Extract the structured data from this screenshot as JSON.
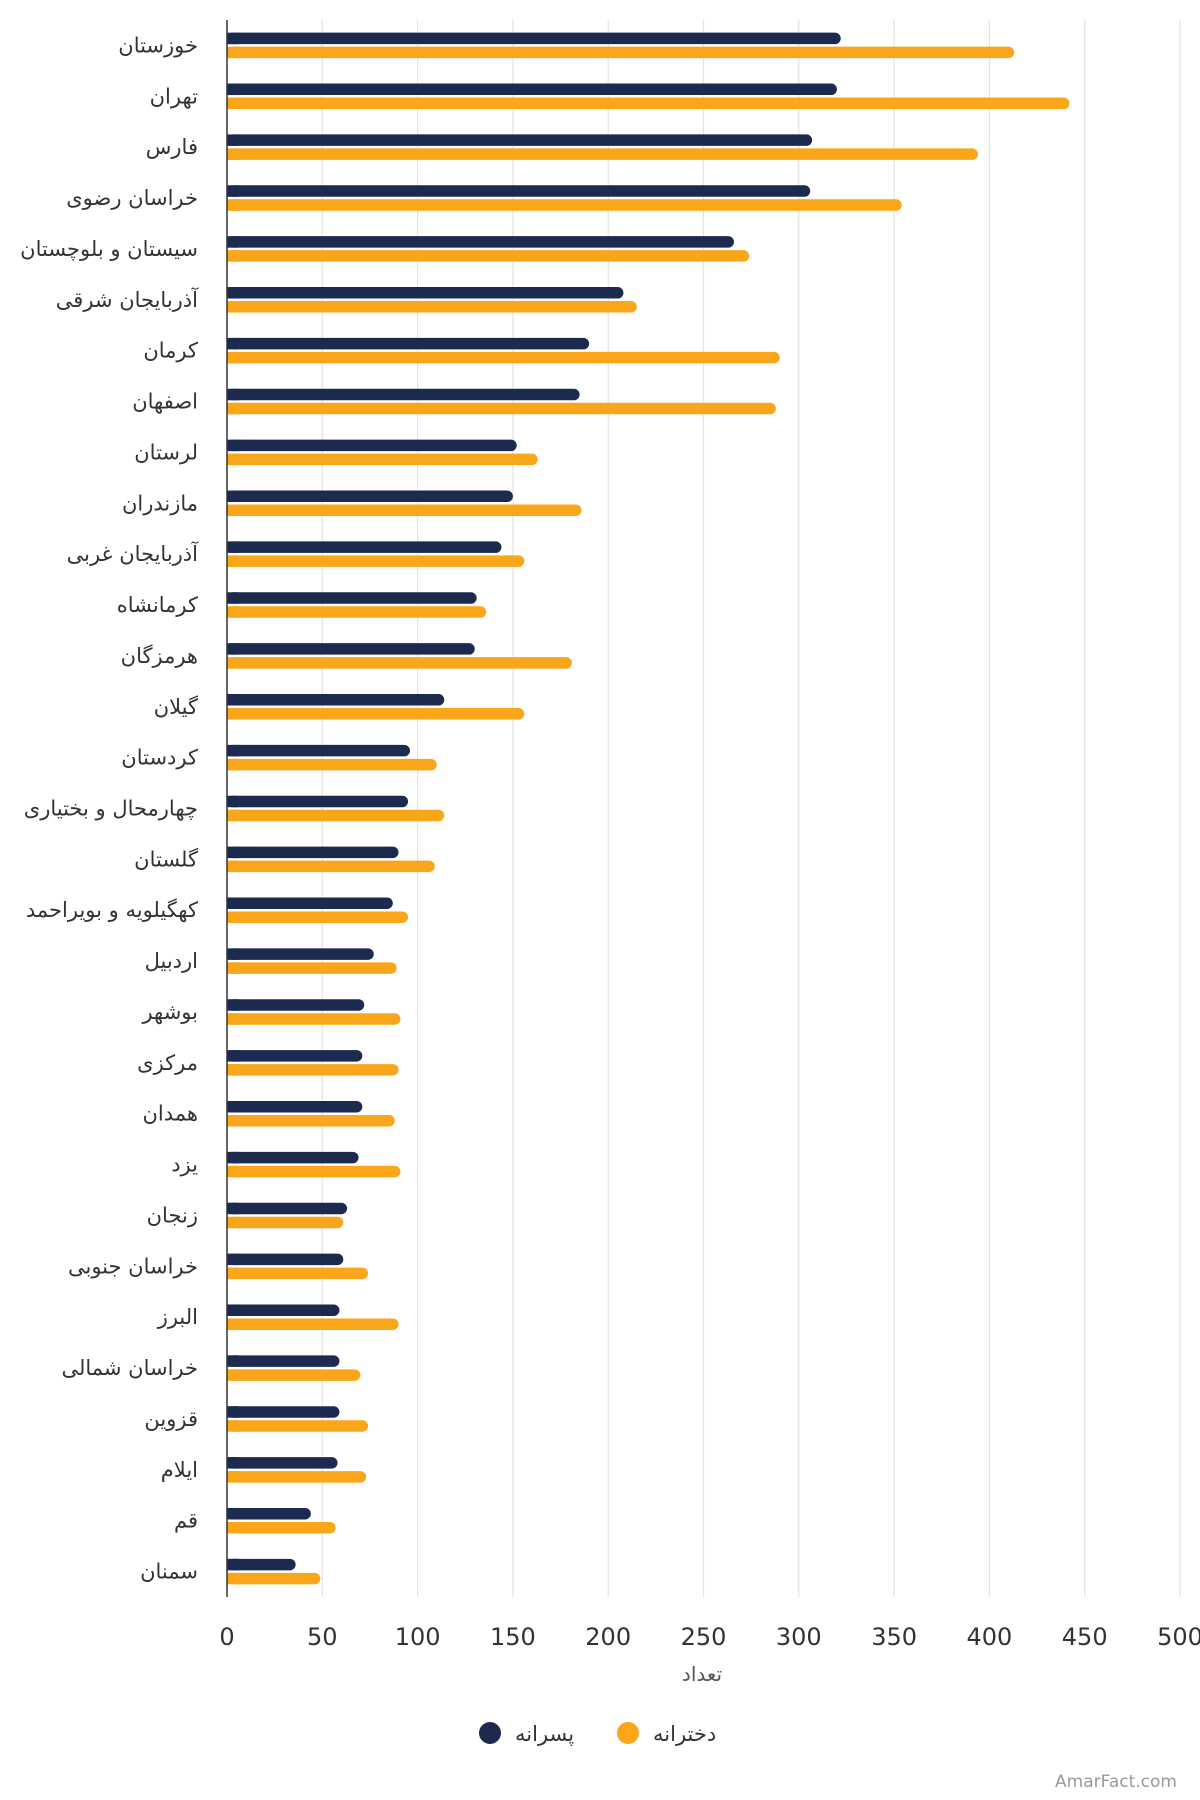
{
  "chart_data": {
    "type": "bar",
    "orientation": "horizontal",
    "categories": [
      "خوزستان",
      "تهران",
      "فارس",
      "خراسان رضوی",
      "سیستان و بلوچستان",
      "آذربایجان شرقی",
      "کرمان",
      "اصفهان",
      "لرستان",
      "مازندران",
      "آذربایجان غربی",
      "کرمانشاه",
      "هرمزگان",
      "گیلان",
      "کردستان",
      "چهارمحال و بختیاری",
      "گلستان",
      "کهگیلویه و بویراحمد",
      "اردبیل",
      "بوشهر",
      "مرکزی",
      "همدان",
      "یزد",
      "زنجان",
      "خراسان جنوبی",
      "البرز",
      "خراسان شمالی",
      "قزوین",
      "ایلام",
      "قم",
      "سمنان"
    ],
    "series": [
      {
        "name": "پسرانه",
        "color": "#1b2a4e",
        "values": [
          322,
          320,
          307,
          306,
          266,
          208,
          190,
          185,
          152,
          150,
          144,
          131,
          130,
          114,
          96,
          95,
          90,
          87,
          77,
          72,
          71,
          71,
          69,
          63,
          61,
          59,
          59,
          59,
          58,
          44,
          36
        ]
      },
      {
        "name": "دخترانه",
        "color": "#f9a61a",
        "values": [
          413,
          442,
          394,
          354,
          274,
          215,
          290,
          288,
          163,
          186,
          156,
          136,
          181,
          156,
          110,
          114,
          109,
          95,
          89,
          91,
          90,
          88,
          91,
          61,
          74,
          90,
          70,
          74,
          73,
          57,
          49
        ]
      }
    ],
    "xlabel": "تعداد",
    "xlim": [
      0,
      500
    ],
    "xticks": [
      0,
      50,
      100,
      150,
      200,
      250,
      300,
      350,
      400,
      450,
      500
    ],
    "grid": true,
    "legend_position": "bottom"
  },
  "footer": {
    "watermark": "AmarFact.com"
  }
}
